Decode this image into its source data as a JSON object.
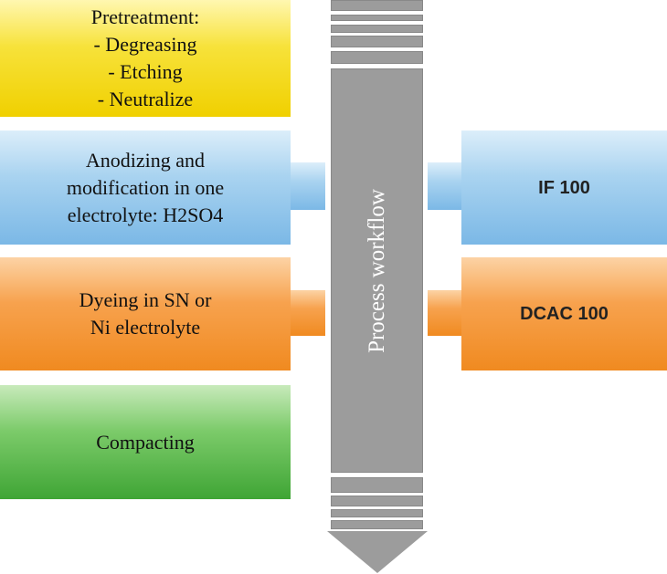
{
  "left_steps": [
    {
      "text": "Pretreatment:\n- Degreasing\n- Etching\n- Neutralize",
      "color": "#f7e23a"
    },
    {
      "text": "Anodizing and\nmodification in one\nelectrolyte: H2SO4",
      "color": "#a9d3f0"
    },
    {
      "text": "Dyeing in SN or\nNi electrolyte",
      "color": "#f7a24e"
    },
    {
      "text": "Compacting",
      "color": "#7ccb6a"
    }
  ],
  "right_steps": [
    {
      "text": "IF 100",
      "color": "#a9d3f0"
    },
    {
      "text": "DCAC 100",
      "color": "#f7a24e"
    }
  ],
  "workflow": {
    "label": "Process workflow",
    "color": "#9c9c9c"
  }
}
